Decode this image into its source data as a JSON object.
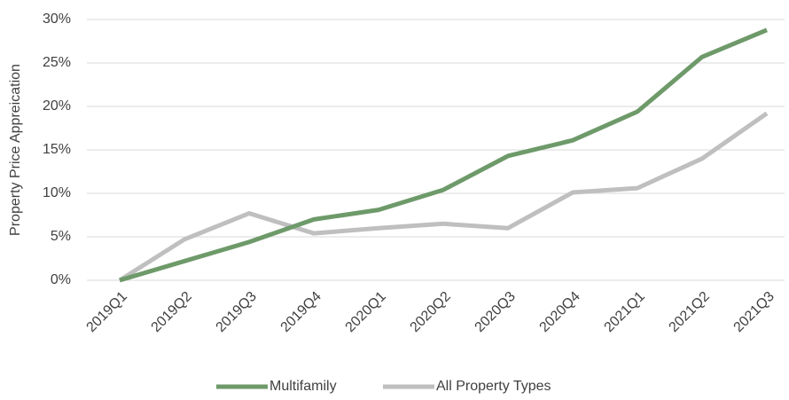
{
  "chart_data": {
    "type": "line",
    "y_label": "Property Price Appreication",
    "categories": [
      "2019Q1",
      "2019Q2",
      "2019Q3",
      "2019Q4",
      "2020Q1",
      "2020Q2",
      "2020Q3",
      "2020Q4",
      "2021Q1",
      "2021Q2",
      "2021Q3"
    ],
    "series": [
      {
        "name": "Multifamily",
        "color": "#6e9a6a",
        "values": [
          0,
          2.2,
          4.4,
          7.0,
          8.1,
          10.4,
          14.3,
          16.1,
          19.4,
          25.7,
          28.8
        ]
      },
      {
        "name": "All Property Types",
        "color": "#bfbfbf",
        "values": [
          0,
          4.7,
          7.7,
          5.4,
          6.0,
          6.5,
          6.0,
          10.1,
          10.6,
          14.0,
          19.2
        ]
      }
    ],
    "ylim": [
      0,
      30
    ],
    "yticks": [
      {
        "value": 0,
        "label": "0%"
      },
      {
        "value": 5,
        "label": "5%"
      },
      {
        "value": 10,
        "label": "10%"
      },
      {
        "value": 15,
        "label": "15%"
      },
      {
        "value": 20,
        "label": "20%"
      },
      {
        "value": 25,
        "label": "25%"
      },
      {
        "value": 30,
        "label": "30%"
      }
    ],
    "grid": true
  }
}
